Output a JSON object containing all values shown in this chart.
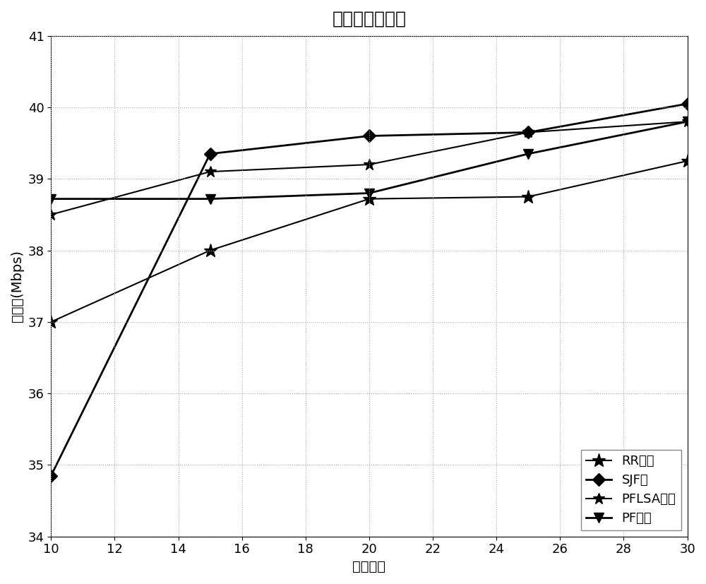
{
  "title": "系统吞吐量统计",
  "xlabel": "用户数量",
  "ylabel": "吞吐量(Mbps)",
  "xlim": [
    10,
    30
  ],
  "ylim": [
    34,
    41
  ],
  "xticks": [
    10,
    12,
    14,
    16,
    18,
    20,
    22,
    24,
    26,
    28,
    30
  ],
  "yticks": [
    34,
    35,
    36,
    37,
    38,
    39,
    40,
    41
  ],
  "x": [
    10,
    15,
    20,
    25,
    30
  ],
  "series": [
    {
      "label": "RR算法",
      "y": [
        37.0,
        38.0,
        38.72,
        38.75,
        39.25
      ],
      "marker": "*",
      "markersize": 14,
      "linewidth": 1.5
    },
    {
      "label": "SJF法",
      "y": [
        34.85,
        39.35,
        39.6,
        39.65,
        40.05
      ],
      "marker": "D",
      "markersize": 9,
      "linewidth": 2.0
    },
    {
      "label": "PFLSA算法",
      "y": [
        38.5,
        39.1,
        39.2,
        39.65,
        39.8
      ],
      "marker": "*",
      "markersize": 12,
      "linewidth": 1.5
    },
    {
      "label": "PF算法",
      "y": [
        38.72,
        38.72,
        38.8,
        39.35,
        39.8
      ],
      "marker": "v",
      "markersize": 10,
      "linewidth": 2.0
    }
  ],
  "grid_color": "#aaaaaa",
  "grid_linestyle": ":",
  "background_color": "#ffffff",
  "title_fontsize": 18,
  "label_fontsize": 14,
  "tick_fontsize": 13,
  "legend_fontsize": 13
}
